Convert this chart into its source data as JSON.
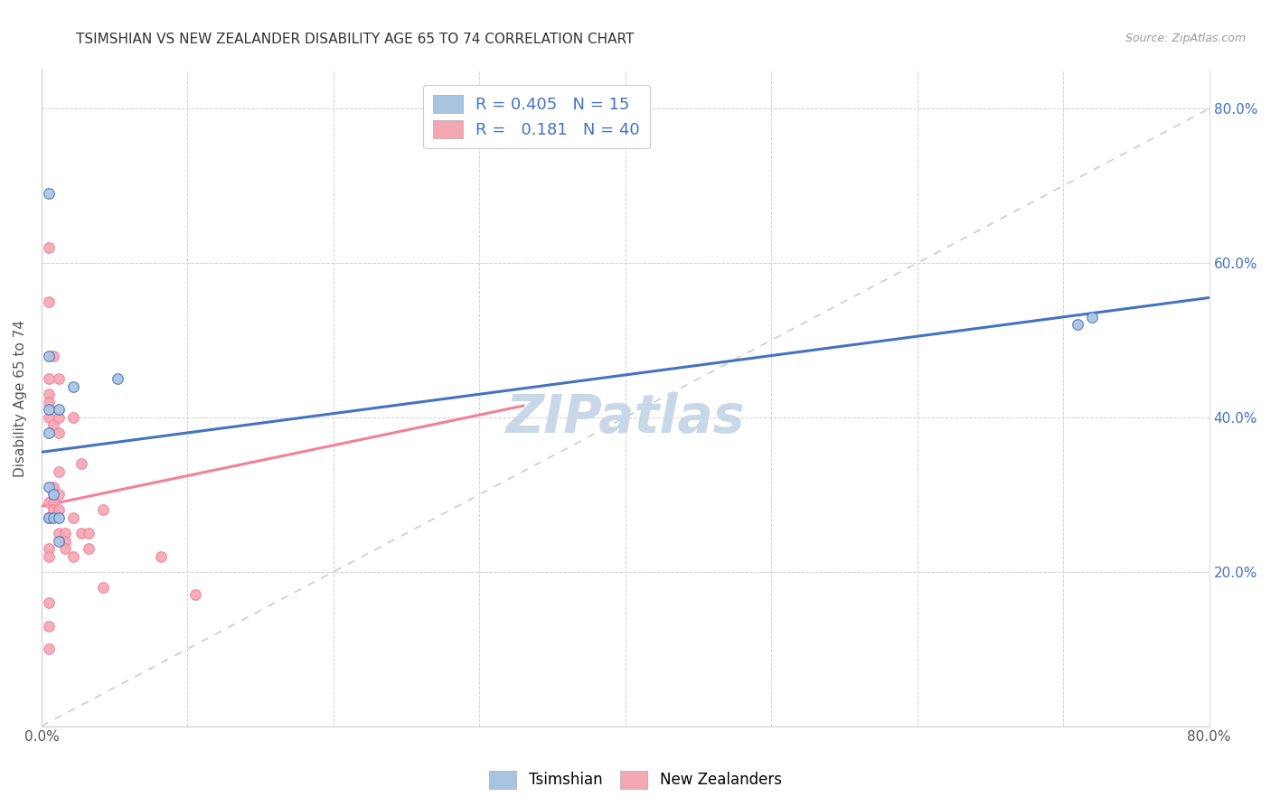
{
  "title": "TSIMSHIAN VS NEW ZEALANDER DISABILITY AGE 65 TO 74 CORRELATION CHART",
  "source": "Source: ZipAtlas.com",
  "ylabel": "Disability Age 65 to 74",
  "xmin": 0.0,
  "xmax": 0.8,
  "ymin": 0.0,
  "ymax": 0.85,
  "tsimshian_R": 0.405,
  "tsimshian_N": 15,
  "nz_R": 0.181,
  "nz_N": 40,
  "tsimshian_color": "#a8c4e0",
  "nz_color": "#f4a7b3",
  "tsimshian_line_color": "#4472c4",
  "nz_line_color": "#f48098",
  "diagonal_color": "#c0c0c0",
  "watermark_color": "#c8d8e8",
  "background_color": "#ffffff",
  "tsimshian_x": [
    0.005,
    0.005,
    0.005,
    0.005,
    0.005,
    0.005,
    0.008,
    0.008,
    0.012,
    0.012,
    0.012,
    0.022,
    0.052,
    0.71,
    0.72
  ],
  "tsimshian_y": [
    0.69,
    0.48,
    0.41,
    0.38,
    0.31,
    0.27,
    0.3,
    0.27,
    0.41,
    0.27,
    0.24,
    0.44,
    0.45,
    0.52,
    0.53
  ],
  "nz_x": [
    0.005,
    0.005,
    0.005,
    0.005,
    0.005,
    0.005,
    0.005,
    0.005,
    0.005,
    0.005,
    0.005,
    0.005,
    0.005,
    0.005,
    0.008,
    0.008,
    0.008,
    0.008,
    0.008,
    0.012,
    0.012,
    0.012,
    0.012,
    0.012,
    0.012,
    0.012,
    0.016,
    0.016,
    0.016,
    0.022,
    0.022,
    0.022,
    0.027,
    0.027,
    0.032,
    0.032,
    0.042,
    0.042,
    0.082,
    0.105
  ],
  "nz_y": [
    0.62,
    0.55,
    0.45,
    0.43,
    0.42,
    0.4,
    0.29,
    0.27,
    0.27,
    0.23,
    0.22,
    0.16,
    0.13,
    0.1,
    0.48,
    0.39,
    0.31,
    0.29,
    0.28,
    0.45,
    0.4,
    0.38,
    0.33,
    0.3,
    0.28,
    0.25,
    0.25,
    0.24,
    0.23,
    0.4,
    0.27,
    0.22,
    0.34,
    0.25,
    0.25,
    0.23,
    0.28,
    0.18,
    0.22,
    0.17
  ],
  "ts_line_x0": 0.0,
  "ts_line_x1": 0.8,
  "ts_line_y0": 0.355,
  "ts_line_y1": 0.555,
  "nz_line_x0": 0.0,
  "nz_line_x1": 0.33,
  "nz_line_y0": 0.285,
  "nz_line_y1": 0.415
}
